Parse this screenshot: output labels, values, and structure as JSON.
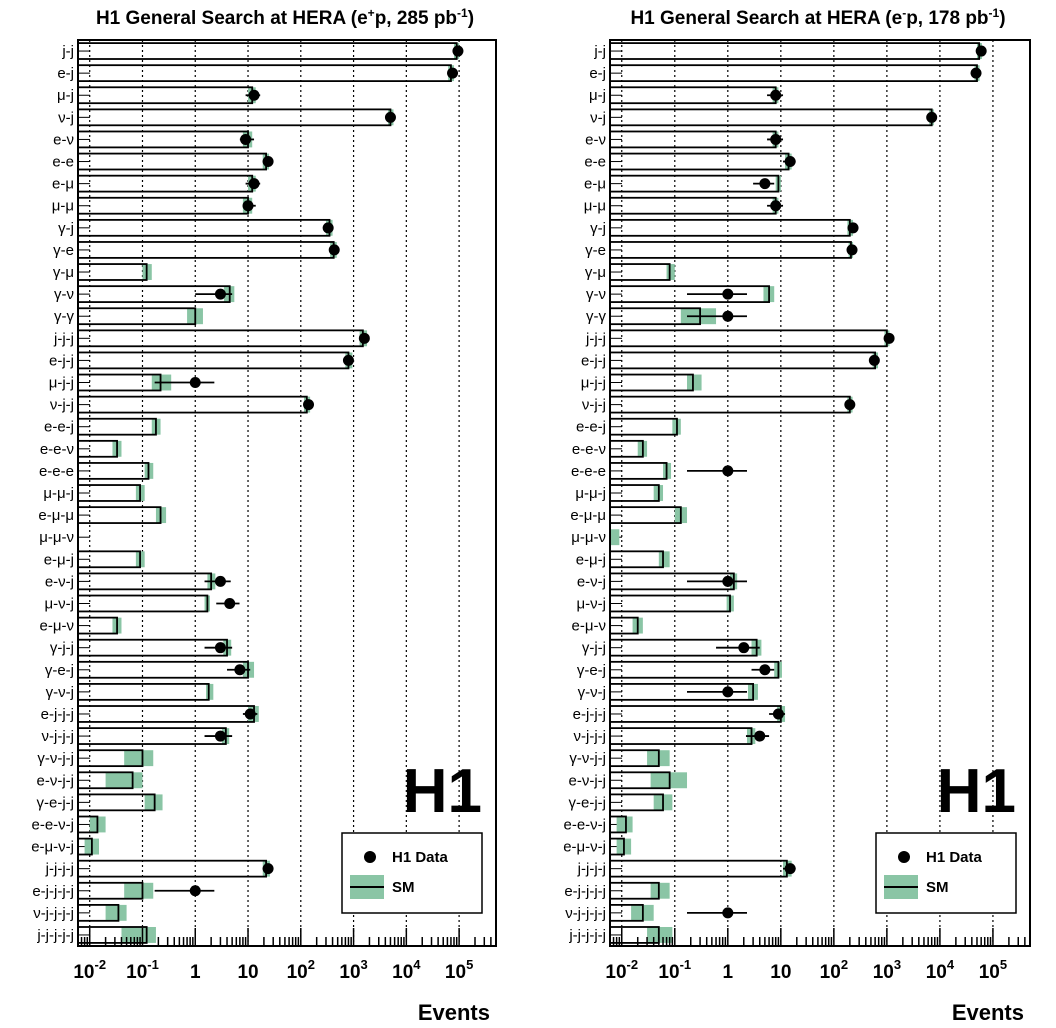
{
  "colors": {
    "sm_band": "#8ac5a5",
    "data": "#000000",
    "frame": "#000000"
  },
  "legend": {
    "data_label": "H1 Data",
    "sm_label": "SM"
  },
  "logo_text": "H1",
  "chart_data": [
    {
      "type": "bar",
      "orientation": "horizontal",
      "title_prefix": "H1 General Search at HERA (e",
      "title_sup": "+",
      "title_mid": "p, 285 pb",
      "title_exp": "-1",
      "title_suffix": ")",
      "xlabel": "Events",
      "xscale": "log",
      "xlim": [
        0.006,
        500000
      ],
      "grid": "vertical dotted at decades",
      "legend_position": "bottom-right",
      "xticks": [
        {
          "base": "10",
          "exp": "-2"
        },
        {
          "base": "10",
          "exp": "-1"
        },
        {
          "base": "1",
          "exp": ""
        },
        {
          "base": "10",
          "exp": ""
        },
        {
          "base": "10",
          "exp": "2"
        },
        {
          "base": "10",
          "exp": "3"
        },
        {
          "base": "10",
          "exp": "4"
        },
        {
          "base": "10",
          "exp": "5"
        }
      ],
      "categories": [
        "j-j",
        "e-j",
        "μ-j",
        "ν-j",
        "e-ν",
        "e-e",
        "e-μ",
        "μ-μ",
        "γ-j",
        "γ-e",
        "γ-μ",
        "γ-ν",
        "γ-γ",
        "j-j-j",
        "e-j-j",
        "μ-j-j",
        "ν-j-j",
        "e-e-j",
        "e-e-ν",
        "e-e-e",
        "μ-μ-j",
        "e-μ-μ",
        "μ-μ-ν",
        "e-μ-j",
        "e-ν-j",
        "μ-ν-j",
        "e-μ-ν",
        "γ-j-j",
        "γ-e-j",
        "γ-ν-j",
        "e-j-j-j",
        "ν-j-j-j",
        "γ-ν-j-j",
        "e-ν-j-j",
        "γ-e-j-j",
        "e-e-ν-j",
        "e-μ-ν-j",
        "j-j-j-j",
        "e-j-j-j-j",
        "ν-j-j-j-j",
        "j-j-j-j-j"
      ],
      "series": [
        {
          "name": "SM",
          "values": [
            90000,
            70000,
            12,
            5000,
            10,
            22,
            12,
            10,
            350,
            420,
            0.12,
            4.5,
            1,
            1500,
            800,
            0.22,
            130,
            0.18,
            0.033,
            0.13,
            0.09,
            0.22,
            0,
            0.09,
            2,
            1.7,
            0.033,
            4,
            10,
            1.8,
            13,
            3.8,
            0.1,
            0.065,
            0.17,
            0.014,
            0.011,
            22,
            0.1,
            0.035,
            0.12
          ],
          "band_low": [
            80000,
            62000,
            10,
            4500,
            8,
            19,
            10,
            8,
            300,
            360,
            0.1,
            3.5,
            0.7,
            1300,
            700,
            0.15,
            115,
            0.15,
            0.027,
            0.11,
            0.075,
            0.18,
            0,
            0.075,
            1.7,
            1.5,
            0.027,
            3.4,
            8,
            1.6,
            10,
            3.2,
            0.045,
            0.02,
            0.11,
            0.01,
            0.008,
            19,
            0.045,
            0.02,
            0.04
          ],
          "band_high": [
            100000,
            80000,
            14,
            5700,
            12,
            25,
            14,
            12,
            400,
            480,
            0.15,
            5.5,
            1.4,
            1800,
            950,
            0.35,
            150,
            0.22,
            0.04,
            0.16,
            0.11,
            0.28,
            0,
            0.11,
            2.4,
            1.9,
            0.04,
            4.8,
            13,
            2.2,
            16,
            4.4,
            0.16,
            0.1,
            0.24,
            0.02,
            0.015,
            26,
            0.16,
            0.05,
            0.18
          ]
        },
        {
          "name": "H1 Data",
          "values": [
            95000,
            75000,
            13,
            5000,
            9,
            24,
            13,
            10,
            330,
            430,
            0,
            3,
            0,
            1600,
            800,
            1,
            140,
            0,
            0,
            0,
            0,
            0,
            0,
            0,
            3,
            4.5,
            0,
            3,
            7,
            0,
            11,
            3,
            0,
            0,
            0,
            0,
            0,
            24,
            1,
            0,
            0
          ],
          "err_low": [
            93000,
            73000,
            9,
            4800,
            7,
            19,
            9,
            8,
            300,
            400,
            0,
            1,
            0,
            1500,
            750,
            0.17,
            120,
            0,
            0,
            0,
            0,
            0,
            0,
            0,
            1.5,
            2.5,
            0,
            1.5,
            4,
            0,
            8,
            1.5,
            0,
            0,
            0,
            0,
            0,
            19,
            0.17,
            0,
            0
          ],
          "err_high": [
            97000,
            77000,
            17,
            5200,
            13,
            29,
            17,
            14,
            360,
            460,
            0,
            5,
            0,
            1700,
            850,
            2.3,
            160,
            0,
            0,
            0,
            0,
            0,
            0,
            0,
            4.7,
            6.9,
            0,
            5,
            11,
            0,
            15,
            5,
            0,
            0,
            0,
            0,
            0,
            29,
            2.3,
            0,
            0
          ]
        }
      ]
    },
    {
      "type": "bar",
      "orientation": "horizontal",
      "title_prefix": "H1 General Search at HERA (e",
      "title_sup": "-",
      "title_mid": "p, 178 pb",
      "title_exp": "-1",
      "title_suffix": ")",
      "xlabel": "Events",
      "xscale": "log",
      "xlim": [
        0.006,
        500000
      ],
      "grid": "vertical dotted at decades",
      "legend_position": "bottom-right",
      "xticks": [
        {
          "base": "10",
          "exp": "-2"
        },
        {
          "base": "10",
          "exp": "-1"
        },
        {
          "base": "1",
          "exp": ""
        },
        {
          "base": "10",
          "exp": ""
        },
        {
          "base": "10",
          "exp": "2"
        },
        {
          "base": "10",
          "exp": "3"
        },
        {
          "base": "10",
          "exp": "4"
        },
        {
          "base": "10",
          "exp": "5"
        }
      ],
      "categories": [
        "j-j",
        "e-j",
        "μ-j",
        "ν-j",
        "e-ν",
        "e-e",
        "e-μ",
        "μ-μ",
        "γ-j",
        "γ-e",
        "γ-μ",
        "γ-ν",
        "γ-γ",
        "j-j-j",
        "e-j-j",
        "μ-j-j",
        "ν-j-j",
        "e-e-j",
        "e-e-ν",
        "e-e-e",
        "μ-μ-j",
        "e-μ-μ",
        "μ-μ-ν",
        "e-μ-j",
        "e-ν-j",
        "μ-ν-j",
        "e-μ-ν",
        "γ-j-j",
        "γ-e-j",
        "γ-ν-j",
        "e-j-j-j",
        "ν-j-j-j",
        "γ-ν-j-j",
        "e-ν-j-j",
        "γ-e-j-j",
        "e-e-ν-j",
        "e-μ-ν-j",
        "j-j-j-j",
        "e-j-j-j-j",
        "ν-j-j-j-j",
        "j-j-j-j-j"
      ],
      "series": [
        {
          "name": "SM",
          "values": [
            55000,
            50000,
            8,
            7000,
            8,
            14,
            9,
            8,
            200,
            210,
            0.08,
            6,
            0.3,
            1000,
            600,
            0.22,
            200,
            0.11,
            0.025,
            0.07,
            0.05,
            0.13,
            0,
            0.06,
            1.3,
            1.1,
            0.02,
            3.5,
            9,
            3,
            10,
            2.8,
            0.05,
            0.08,
            0.06,
            0.012,
            0.011,
            13,
            0.05,
            0.025,
            0.05
          ],
          "band_low": [
            50000,
            45000,
            7,
            6300,
            7,
            12,
            8,
            7,
            180,
            190,
            0.07,
            4.7,
            0.13,
            900,
            540,
            0.17,
            180,
            0.09,
            0.02,
            0.06,
            0.04,
            0.1,
            0,
            0.05,
            1.1,
            0.95,
            0.016,
            2.8,
            7.5,
            2.4,
            8.5,
            2.3,
            0.03,
            0.035,
            0.04,
            0.008,
            0.008,
            11,
            0.035,
            0.015,
            0.03
          ],
          "band_high": [
            62000,
            56000,
            9,
            7700,
            9,
            16,
            10,
            9,
            230,
            230,
            0.1,
            7.5,
            0.6,
            1120,
            680,
            0.32,
            225,
            0.13,
            0.03,
            0.085,
            0.06,
            0.17,
            0.009,
            0.08,
            1.5,
            1.3,
            0.025,
            4.3,
            10.5,
            3.7,
            12,
            3.3,
            0.08,
            0.17,
            0.09,
            0.016,
            0.015,
            16,
            0.08,
            0.04,
            0.09
          ]
        },
        {
          "name": "H1 Data",
          "values": [
            60000,
            48000,
            8,
            7000,
            8,
            15,
            5,
            8,
            230,
            220,
            0,
            1,
            1,
            1100,
            580,
            0,
            200,
            0,
            0,
            1,
            0,
            0,
            0,
            0,
            1,
            0,
            0,
            2,
            5,
            1,
            9,
            4,
            0,
            0,
            0,
            0,
            0,
            15,
            0,
            1,
            0
          ],
          "err_low": [
            58000,
            46000,
            5.5,
            6800,
            5.5,
            11,
            3,
            5.5,
            200,
            190,
            0,
            0.17,
            0.17,
            1030,
            550,
            0,
            180,
            0,
            0,
            0.17,
            0,
            0,
            0,
            0,
            0.17,
            0,
            0,
            0.6,
            2.8,
            0.17,
            6,
            2.2,
            0,
            0,
            0,
            0,
            0,
            11,
            0,
            0.17,
            0
          ],
          "err_high": [
            62000,
            50000,
            11,
            7200,
            11,
            19,
            7.5,
            11,
            260,
            250,
            0,
            2.3,
            2.3,
            1170,
            610,
            0,
            220,
            0,
            0,
            2.3,
            0,
            0,
            0,
            0,
            2.3,
            0,
            0,
            4,
            7.5,
            2.3,
            12,
            6,
            0,
            0,
            0,
            0,
            0,
            19,
            0,
            2.3,
            0
          ]
        }
      ]
    }
  ]
}
